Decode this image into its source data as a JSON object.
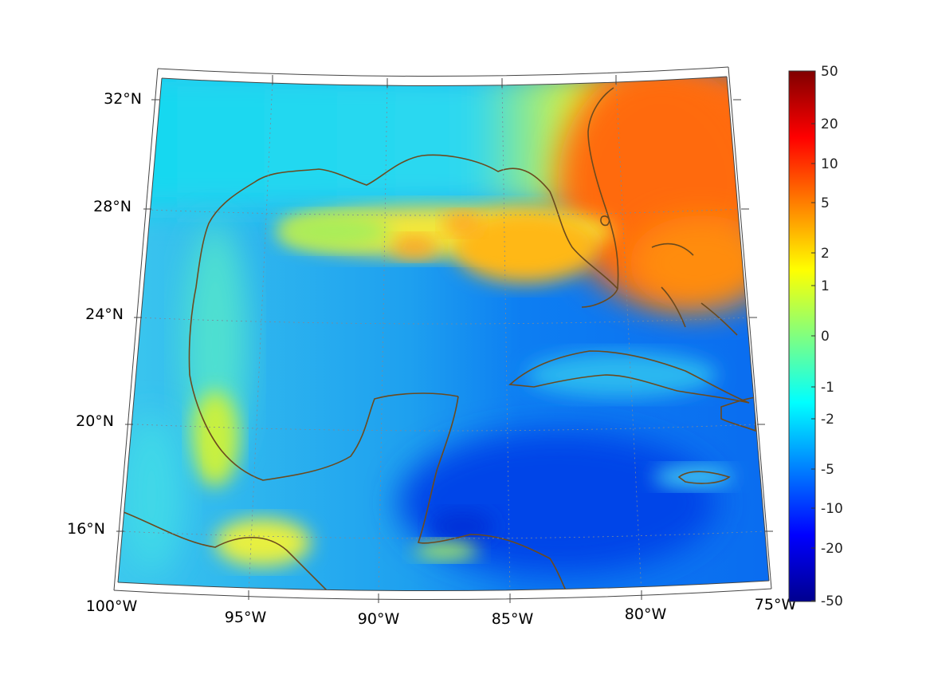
{
  "map": {
    "projection": "conic",
    "region": "Gulf of Mexico and Caribbean",
    "lon_labels": [
      "100°W",
      "95°W",
      "90°W",
      "85°W",
      "80°W",
      "75°W"
    ],
    "lat_labels": [
      "32°N",
      "28°N",
      "24°N",
      "20°N",
      "16°N"
    ],
    "coastline_color": "#6b4a1e",
    "colormap": "jet"
  },
  "colorbar": {
    "tick_labels": [
      "50",
      "20",
      "10",
      "5",
      "2",
      "1",
      "0",
      "-1",
      "-2",
      "-5",
      "-10",
      "-20",
      "-50"
    ]
  },
  "chart_data": {
    "type": "heatmap",
    "xlabel": "",
    "ylabel": "",
    "title": "",
    "color_scale": [
      -50,
      50
    ],
    "color_ticks": [
      50,
      20,
      10,
      5,
      2,
      1,
      0,
      -1,
      -2,
      -5,
      -10,
      -20,
      -50
    ]
  }
}
